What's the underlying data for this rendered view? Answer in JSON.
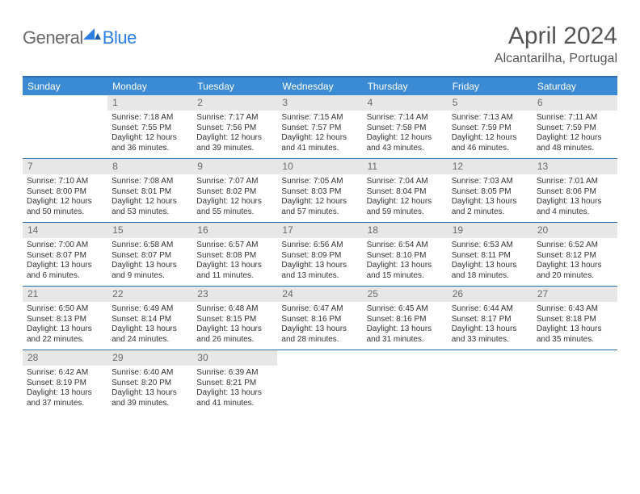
{
  "logo": {
    "part1": "General",
    "part2": "Blue"
  },
  "title": "April 2024",
  "subtitle": "Alcantarilha, Portugal",
  "colors": {
    "header_bg": "#3b8bd4",
    "rule": "#2a6fb0",
    "daybar_bg": "#e7e7e7",
    "text": "#333333",
    "logo_gray": "#6a6a6a",
    "logo_blue": "#2a7de1"
  },
  "day_names": [
    "Sunday",
    "Monday",
    "Tuesday",
    "Wednesday",
    "Thursday",
    "Friday",
    "Saturday"
  ],
  "weeks": [
    [
      null,
      {
        "n": "1",
        "sr": "Sunrise: 7:18 AM",
        "ss": "Sunset: 7:55 PM",
        "d1": "Daylight: 12 hours",
        "d2": "and 36 minutes."
      },
      {
        "n": "2",
        "sr": "Sunrise: 7:17 AM",
        "ss": "Sunset: 7:56 PM",
        "d1": "Daylight: 12 hours",
        "d2": "and 39 minutes."
      },
      {
        "n": "3",
        "sr": "Sunrise: 7:15 AM",
        "ss": "Sunset: 7:57 PM",
        "d1": "Daylight: 12 hours",
        "d2": "and 41 minutes."
      },
      {
        "n": "4",
        "sr": "Sunrise: 7:14 AM",
        "ss": "Sunset: 7:58 PM",
        "d1": "Daylight: 12 hours",
        "d2": "and 43 minutes."
      },
      {
        "n": "5",
        "sr": "Sunrise: 7:13 AM",
        "ss": "Sunset: 7:59 PM",
        "d1": "Daylight: 12 hours",
        "d2": "and 46 minutes."
      },
      {
        "n": "6",
        "sr": "Sunrise: 7:11 AM",
        "ss": "Sunset: 7:59 PM",
        "d1": "Daylight: 12 hours",
        "d2": "and 48 minutes."
      }
    ],
    [
      {
        "n": "7",
        "sr": "Sunrise: 7:10 AM",
        "ss": "Sunset: 8:00 PM",
        "d1": "Daylight: 12 hours",
        "d2": "and 50 minutes."
      },
      {
        "n": "8",
        "sr": "Sunrise: 7:08 AM",
        "ss": "Sunset: 8:01 PM",
        "d1": "Daylight: 12 hours",
        "d2": "and 53 minutes."
      },
      {
        "n": "9",
        "sr": "Sunrise: 7:07 AM",
        "ss": "Sunset: 8:02 PM",
        "d1": "Daylight: 12 hours",
        "d2": "and 55 minutes."
      },
      {
        "n": "10",
        "sr": "Sunrise: 7:05 AM",
        "ss": "Sunset: 8:03 PM",
        "d1": "Daylight: 12 hours",
        "d2": "and 57 minutes."
      },
      {
        "n": "11",
        "sr": "Sunrise: 7:04 AM",
        "ss": "Sunset: 8:04 PM",
        "d1": "Daylight: 12 hours",
        "d2": "and 59 minutes."
      },
      {
        "n": "12",
        "sr": "Sunrise: 7:03 AM",
        "ss": "Sunset: 8:05 PM",
        "d1": "Daylight: 13 hours",
        "d2": "and 2 minutes."
      },
      {
        "n": "13",
        "sr": "Sunrise: 7:01 AM",
        "ss": "Sunset: 8:06 PM",
        "d1": "Daylight: 13 hours",
        "d2": "and 4 minutes."
      }
    ],
    [
      {
        "n": "14",
        "sr": "Sunrise: 7:00 AM",
        "ss": "Sunset: 8:07 PM",
        "d1": "Daylight: 13 hours",
        "d2": "and 6 minutes."
      },
      {
        "n": "15",
        "sr": "Sunrise: 6:58 AM",
        "ss": "Sunset: 8:07 PM",
        "d1": "Daylight: 13 hours",
        "d2": "and 9 minutes."
      },
      {
        "n": "16",
        "sr": "Sunrise: 6:57 AM",
        "ss": "Sunset: 8:08 PM",
        "d1": "Daylight: 13 hours",
        "d2": "and 11 minutes."
      },
      {
        "n": "17",
        "sr": "Sunrise: 6:56 AM",
        "ss": "Sunset: 8:09 PM",
        "d1": "Daylight: 13 hours",
        "d2": "and 13 minutes."
      },
      {
        "n": "18",
        "sr": "Sunrise: 6:54 AM",
        "ss": "Sunset: 8:10 PM",
        "d1": "Daylight: 13 hours",
        "d2": "and 15 minutes."
      },
      {
        "n": "19",
        "sr": "Sunrise: 6:53 AM",
        "ss": "Sunset: 8:11 PM",
        "d1": "Daylight: 13 hours",
        "d2": "and 18 minutes."
      },
      {
        "n": "20",
        "sr": "Sunrise: 6:52 AM",
        "ss": "Sunset: 8:12 PM",
        "d1": "Daylight: 13 hours",
        "d2": "and 20 minutes."
      }
    ],
    [
      {
        "n": "21",
        "sr": "Sunrise: 6:50 AM",
        "ss": "Sunset: 8:13 PM",
        "d1": "Daylight: 13 hours",
        "d2": "and 22 minutes."
      },
      {
        "n": "22",
        "sr": "Sunrise: 6:49 AM",
        "ss": "Sunset: 8:14 PM",
        "d1": "Daylight: 13 hours",
        "d2": "and 24 minutes."
      },
      {
        "n": "23",
        "sr": "Sunrise: 6:48 AM",
        "ss": "Sunset: 8:15 PM",
        "d1": "Daylight: 13 hours",
        "d2": "and 26 minutes."
      },
      {
        "n": "24",
        "sr": "Sunrise: 6:47 AM",
        "ss": "Sunset: 8:16 PM",
        "d1": "Daylight: 13 hours",
        "d2": "and 28 minutes."
      },
      {
        "n": "25",
        "sr": "Sunrise: 6:45 AM",
        "ss": "Sunset: 8:16 PM",
        "d1": "Daylight: 13 hours",
        "d2": "and 31 minutes."
      },
      {
        "n": "26",
        "sr": "Sunrise: 6:44 AM",
        "ss": "Sunset: 8:17 PM",
        "d1": "Daylight: 13 hours",
        "d2": "and 33 minutes."
      },
      {
        "n": "27",
        "sr": "Sunrise: 6:43 AM",
        "ss": "Sunset: 8:18 PM",
        "d1": "Daylight: 13 hours",
        "d2": "and 35 minutes."
      }
    ],
    [
      {
        "n": "28",
        "sr": "Sunrise: 6:42 AM",
        "ss": "Sunset: 8:19 PM",
        "d1": "Daylight: 13 hours",
        "d2": "and 37 minutes."
      },
      {
        "n": "29",
        "sr": "Sunrise: 6:40 AM",
        "ss": "Sunset: 8:20 PM",
        "d1": "Daylight: 13 hours",
        "d2": "and 39 minutes."
      },
      {
        "n": "30",
        "sr": "Sunrise: 6:39 AM",
        "ss": "Sunset: 8:21 PM",
        "d1": "Daylight: 13 hours",
        "d2": "and 41 minutes."
      },
      null,
      null,
      null,
      null
    ]
  ]
}
